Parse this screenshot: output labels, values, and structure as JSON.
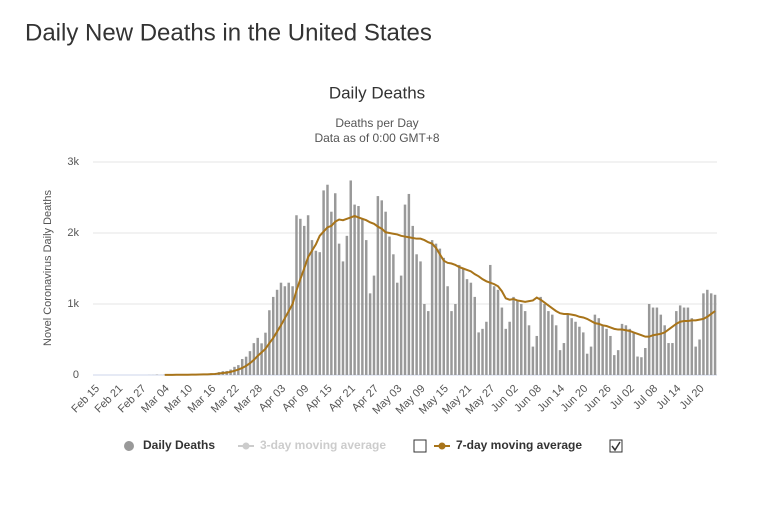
{
  "page_title": "Daily New Deaths in the United States",
  "chart_data": {
    "type": "bar",
    "title": "Daily Deaths",
    "subtitle": "Deaths per Day",
    "note": "Data as of 0:00 GMT+8",
    "y_label": "Novel Coronavirus Daily Deaths",
    "ylim": [
      0,
      3000
    ],
    "yticks": [
      0,
      {
        "value": 1000,
        "label": "1k"
      },
      {
        "value": 2000,
        "label": "2k"
      },
      {
        "value": 3000,
        "label": "3k"
      }
    ],
    "grid": true,
    "categories": [
      "Feb 15",
      null,
      null,
      null,
      null,
      null,
      "Feb 21",
      null,
      null,
      null,
      null,
      null,
      "Feb 27",
      null,
      null,
      null,
      null,
      null,
      "Mar 04",
      null,
      null,
      null,
      null,
      null,
      "Mar 10",
      null,
      null,
      null,
      null,
      null,
      "Mar 16",
      null,
      null,
      null,
      null,
      null,
      "Mar 22",
      null,
      null,
      null,
      null,
      null,
      "Mar 28",
      null,
      null,
      null,
      null,
      null,
      "Apr 03",
      null,
      null,
      null,
      null,
      null,
      "Apr 09",
      null,
      null,
      null,
      null,
      null,
      "Apr 15",
      null,
      null,
      null,
      null,
      null,
      "Apr 21",
      null,
      null,
      null,
      null,
      null,
      "Apr 27",
      null,
      null,
      null,
      null,
      null,
      "May 03",
      null,
      null,
      null,
      null,
      null,
      "May 09",
      null,
      null,
      null,
      null,
      null,
      "May 15",
      null,
      null,
      null,
      null,
      null,
      "May 21",
      null,
      null,
      null,
      null,
      null,
      "May 27",
      null,
      null,
      null,
      null,
      null,
      "Jun 02",
      null,
      null,
      null,
      null,
      null,
      "Jun 08",
      null,
      null,
      null,
      null,
      null,
      "Jun 14",
      null,
      null,
      null,
      null,
      null,
      "Jun 20",
      null,
      null,
      null,
      null,
      null,
      "Jun 26",
      null,
      null,
      null,
      null,
      null,
      "Jul 02",
      null,
      null,
      null,
      null,
      null,
      "Jul 08",
      null,
      null,
      null,
      null,
      null,
      "Jul 14",
      null,
      null,
      null,
      null,
      null,
      "Jul 20",
      null,
      null,
      null,
      null
    ],
    "series": [
      {
        "name": "Daily Deaths",
        "color": "#999999",
        "kind": "bar",
        "values": [
          0,
          0,
          0,
          0,
          0,
          0,
          0,
          0,
          0,
          0,
          0,
          0,
          0,
          0,
          1,
          1,
          5,
          1,
          4,
          1,
          2,
          3,
          4,
          3,
          5,
          8,
          7,
          11,
          9,
          10,
          23,
          25,
          41,
          54,
          57,
          77,
          115,
          139,
          225,
          258,
          336,
          449,
          523,
          446,
          596,
          912,
          1100,
          1200,
          1300,
          1250,
          1300,
          1250,
          2250,
          2200,
          2100,
          2250,
          1900,
          1750,
          1730,
          2600,
          2680,
          2300,
          2560,
          1850,
          1600,
          1960,
          2740,
          2400,
          2380,
          2200,
          1900,
          1150,
          1400,
          2520,
          2460,
          2300,
          1950,
          1700,
          1300,
          1400,
          2400,
          2550,
          2100,
          1700,
          1600,
          1000,
          900,
          1900,
          1850,
          1780,
          1650,
          1250,
          900,
          1000,
          1550,
          1500,
          1350,
          1300,
          1100,
          600,
          650,
          750,
          1550,
          1250,
          1200,
          950,
          650,
          750,
          1100,
          1050,
          1000,
          900,
          700,
          400,
          550,
          1100,
          1000,
          900,
          850,
          700,
          350,
          450,
          850,
          800,
          750,
          680,
          600,
          300,
          400,
          850,
          800,
          700,
          650,
          550,
          280,
          350,
          720,
          700,
          650,
          600,
          260,
          250,
          380,
          1000,
          950,
          950,
          850,
          700,
          450,
          450,
          900,
          980,
          950,
          950,
          800,
          400,
          500,
          1150,
          1200,
          1150,
          1130
        ]
      },
      {
        "name": "3-day moving average",
        "color": "#cccccc",
        "visible": false
      },
      {
        "name": "7-day moving average",
        "color": "#a8741a",
        "kind": "line",
        "values": [
          null,
          null,
          null,
          null,
          null,
          null,
          null,
          null,
          null,
          null,
          null,
          null,
          null,
          null,
          null,
          null,
          null,
          null,
          2,
          2,
          2,
          3,
          3,
          3,
          4,
          5,
          6,
          7,
          8,
          9,
          12,
          15,
          21,
          28,
          33,
          44,
          59,
          76,
          99,
          129,
          166,
          212,
          270,
          318,
          368,
          448,
          520,
          610,
          700,
          800,
          900,
          1000,
          1190,
          1350,
          1500,
          1660,
          1750,
          1840,
          1960,
          2020,
          2080,
          2100,
          2160,
          2190,
          2180,
          2200,
          2220,
          2240,
          2220,
          2200,
          2180,
          2150,
          2130,
          2090,
          2060,
          2010,
          2000,
          1990,
          1980,
          1960,
          1950,
          1940,
          1930,
          1920,
          1920,
          1900,
          1870,
          1850,
          1790,
          1700,
          1610,
          1580,
          1570,
          1550,
          1520,
          1500,
          1480,
          1460,
          1420,
          1390,
          1350,
          1320,
          1300,
          1280,
          1250,
          1180,
          1080,
          1060,
          1070,
          1050,
          1040,
          1030,
          1040,
          1050,
          1090,
          1060,
          1020,
          980,
          940,
          900,
          870,
          860,
          860,
          850,
          840,
          820,
          810,
          790,
          760,
          730,
          720,
          700,
          690,
          670,
          650,
          640,
          640,
          630,
          620,
          600,
          580,
          560,
          540,
          540,
          560,
          570,
          580,
          600,
          640,
          680,
          720,
          750,
          760,
          760,
          770,
          770,
          780,
          790,
          820,
          860,
          900
        ]
      }
    ]
  }
}
